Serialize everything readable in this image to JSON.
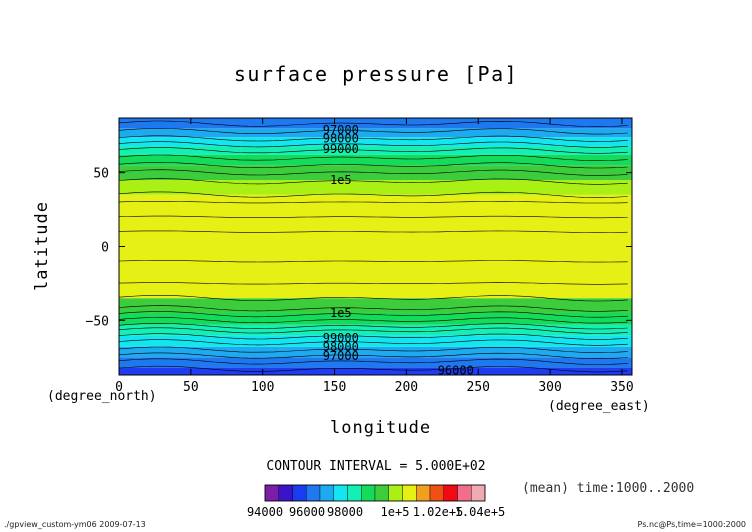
{
  "chart_data": {
    "type": "heatmap",
    "title": "surface pressure [Pa]",
    "xlabel": "longitude",
    "ylabel": "latitude",
    "x_unit": "(degree_east)",
    "y_unit": "(degree_north)",
    "xlim": [
      0,
      357
    ],
    "ylim": [
      -87,
      87
    ],
    "x_ticks": [
      0,
      50,
      100,
      150,
      200,
      250,
      300,
      350
    ],
    "y_ticks": [
      -50,
      0,
      50
    ],
    "grid": false,
    "contour_interval_text": "CONTOUR INTERVAL = 5.000E+02",
    "mean_text": "(mean) time:1000..2000",
    "colorbar": {
      "colors": [
        "#7a1ea8",
        "#3a14c8",
        "#1a3cf0",
        "#1e78f0",
        "#1eaaf0",
        "#14e6f0",
        "#14f0b4",
        "#14dc5a",
        "#3ccc3c",
        "#aaf014",
        "#e6f014",
        "#f0a01e",
        "#f05014",
        "#f00a14",
        "#f06e8c",
        "#f0aab4"
      ],
      "tick_labels": [
        "94000",
        "96000",
        "98000",
        "1e+5",
        "1.02e+5",
        "1.04e+5"
      ]
    },
    "zonal_bands": [
      {
        "lat_from": -87,
        "lat_to": -82,
        "color": "#1e3cf0"
      },
      {
        "lat_from": -82,
        "lat_to": -75,
        "color": "#1e78f0"
      },
      {
        "lat_from": -75,
        "lat_to": -68,
        "color": "#1eaaf0"
      },
      {
        "lat_from": -68,
        "lat_to": -60,
        "color": "#14e6f0"
      },
      {
        "lat_from": -60,
        "lat_to": -53,
        "color": "#14f0b4"
      },
      {
        "lat_from": -53,
        "lat_to": -45,
        "color": "#14dc5a"
      },
      {
        "lat_from": -45,
        "lat_to": -35,
        "color": "#3ccc3c"
      },
      {
        "lat_from": -35,
        "lat_to": 35,
        "color": "#e6f014"
      },
      {
        "lat_from": 35,
        "lat_to": 45,
        "color": "#aaf014"
      },
      {
        "lat_from": 45,
        "lat_to": 55,
        "color": "#3ccc3c"
      },
      {
        "lat_from": 55,
        "lat_to": 62,
        "color": "#14dc5a"
      },
      {
        "lat_from": 62,
        "lat_to": 68,
        "color": "#14f0b4"
      },
      {
        "lat_from": 68,
        "lat_to": 74,
        "color": "#14e6f0"
      },
      {
        "lat_from": 74,
        "lat_to": 80,
        "color": "#1eaaf0"
      },
      {
        "lat_from": 80,
        "lat_to": 87,
        "color": "#1e78f0"
      }
    ],
    "contour_lats": [
      -83,
      -78,
      -74,
      -70,
      -65,
      -61,
      -57,
      -54,
      -50,
      -46,
      -42,
      -35,
      -25,
      -10,
      10,
      20,
      30,
      35,
      44,
      50,
      55,
      60,
      65,
      69,
      73,
      78,
      83
    ],
    "contour_labels": [
      {
        "text": "97000",
        "lon": 130,
        "lat": 79
      },
      {
        "text": "98000",
        "lon": 130,
        "lat": 73
      },
      {
        "text": "99000",
        "lon": 130,
        "lat": 66
      },
      {
        "text": "1e5",
        "lon": 130,
        "lat": 45
      },
      {
        "text": "1e5",
        "lon": 130,
        "lat": -45
      },
      {
        "text": "99000",
        "lon": 130,
        "lat": -62
      },
      {
        "text": "98000",
        "lon": 130,
        "lat": -68
      },
      {
        "text": "97000",
        "lon": 130,
        "lat": -74
      },
      {
        "text": "96000",
        "lon": 210,
        "lat": -84
      }
    ]
  },
  "footer": {
    "left": "./gpview_custom-ym06  2009-07-13",
    "right": "Ps.nc@Ps,time=1000:2000"
  }
}
